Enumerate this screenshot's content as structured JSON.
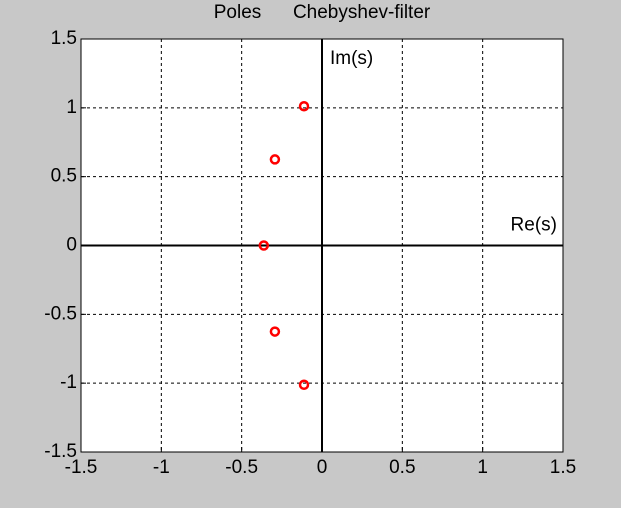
{
  "chart_data": {
    "type": "scatter",
    "title": "Poles      Chebyshev-filter",
    "annotations": [
      "Im(s)",
      "Re(s)"
    ],
    "x": [
      -0.112,
      -0.2931,
      -0.3623,
      -0.2931,
      -0.112
    ],
    "values": [
      1.0116,
      0.6252,
      0,
      -0.6252,
      -1.0116
    ],
    "color": "#ff0000",
    "xlim": [
      -1.5,
      1.5
    ],
    "ylim": [
      -1.5,
      1.5
    ],
    "xticks": [
      -1.5,
      -1,
      -0.5,
      0,
      0.5,
      1,
      1.5
    ],
    "yticks": [
      -1.5,
      -1,
      -0.5,
      0,
      0.5,
      1,
      1.5
    ],
    "grid": true
  }
}
